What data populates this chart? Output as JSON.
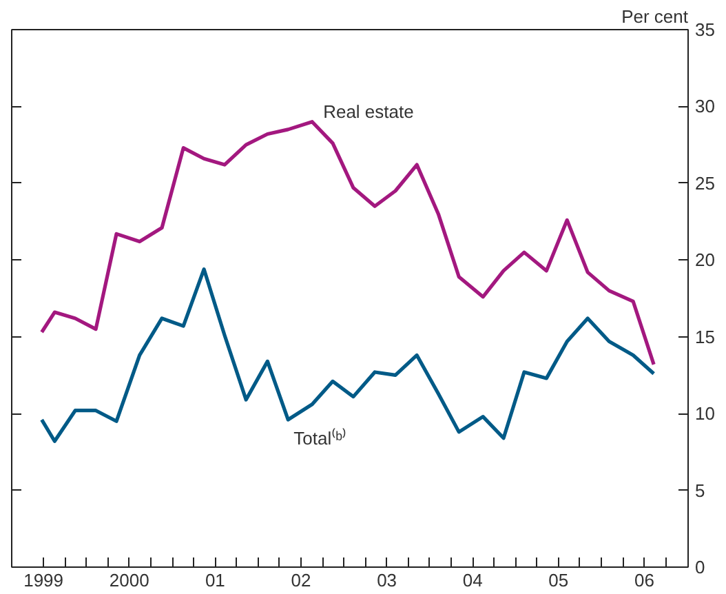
{
  "chart_data": {
    "type": "line",
    "ylabel": "Per cent",
    "x": [
      1998.98,
      1999.13,
      1999.37,
      1999.61,
      1999.85,
      2000.12,
      2000.38,
      2000.63,
      2000.87,
      2001.11,
      2001.36,
      2001.61,
      2001.85,
      2002.13,
      2002.37,
      2002.61,
      2002.86,
      2003.1,
      2003.35,
      2003.6,
      2003.84,
      2004.12,
      2004.36,
      2004.6,
      2004.86,
      2005.1,
      2005.34,
      2005.59,
      2005.87,
      2006.11
    ],
    "series": [
      {
        "name": "Real estate",
        "color": "#a3187f",
        "values": [
          15.3,
          16.6,
          16.2,
          15.5,
          21.7,
          21.2,
          22.1,
          27.3,
          26.6,
          26.2,
          27.5,
          28.2,
          28.5,
          29.0,
          27.6,
          24.7,
          23.5,
          24.5,
          26.2,
          23.0,
          18.9,
          17.6,
          19.3,
          20.5,
          19.3,
          22.6,
          19.2,
          18.0,
          17.3,
          13.2
        ]
      },
      {
        "name": "Total⁽ᵇ⁾",
        "color": "#005a87",
        "values": [
          9.6,
          8.2,
          10.2,
          10.2,
          9.5,
          13.8,
          16.2,
          15.7,
          19.4,
          15.1,
          10.9,
          13.4,
          9.6,
          10.6,
          12.1,
          11.1,
          12.7,
          12.5,
          13.8,
          11.3,
          8.8,
          9.8,
          8.4,
          12.7,
          12.3,
          14.7,
          16.2,
          14.7,
          13.8,
          12.6
        ]
      }
    ],
    "xlim": [
      1998.63,
      2006.51
    ],
    "xticks": [
      {
        "value": 1999,
        "label": "1999"
      },
      {
        "value": 1999.25,
        "label": null
      },
      {
        "value": 1999.5,
        "label": null
      },
      {
        "value": 1999.75,
        "label": null
      },
      {
        "value": 2000,
        "label": "2000"
      },
      {
        "value": 2000.25,
        "label": null
      },
      {
        "value": 2000.5,
        "label": null
      },
      {
        "value": 2000.75,
        "label": null
      },
      {
        "value": 2001,
        "label": "01"
      },
      {
        "value": 2001.25,
        "label": null
      },
      {
        "value": 2001.5,
        "label": null
      },
      {
        "value": 2001.75,
        "label": null
      },
      {
        "value": 2002,
        "label": "02"
      },
      {
        "value": 2002.25,
        "label": null
      },
      {
        "value": 2002.5,
        "label": null
      },
      {
        "value": 2002.75,
        "label": null
      },
      {
        "value": 2003,
        "label": "03"
      },
      {
        "value": 2003.25,
        "label": null
      },
      {
        "value": 2003.5,
        "label": null
      },
      {
        "value": 2003.75,
        "label": null
      },
      {
        "value": 2004,
        "label": "04"
      },
      {
        "value": 2004.25,
        "label": null
      },
      {
        "value": 2004.5,
        "label": null
      },
      {
        "value": 2004.75,
        "label": null
      },
      {
        "value": 2005,
        "label": "05"
      },
      {
        "value": 2005.25,
        "label": null
      },
      {
        "value": 2005.5,
        "label": null
      },
      {
        "value": 2005.75,
        "label": null
      },
      {
        "value": 2006,
        "label": "06"
      },
      {
        "value": 2006.25,
        "label": null
      }
    ],
    "ylim": [
      0,
      35
    ],
    "yticks": [
      0,
      5,
      10,
      15,
      20,
      25,
      30,
      35
    ],
    "grid": false,
    "marker": "none",
    "line_style": "solid"
  }
}
